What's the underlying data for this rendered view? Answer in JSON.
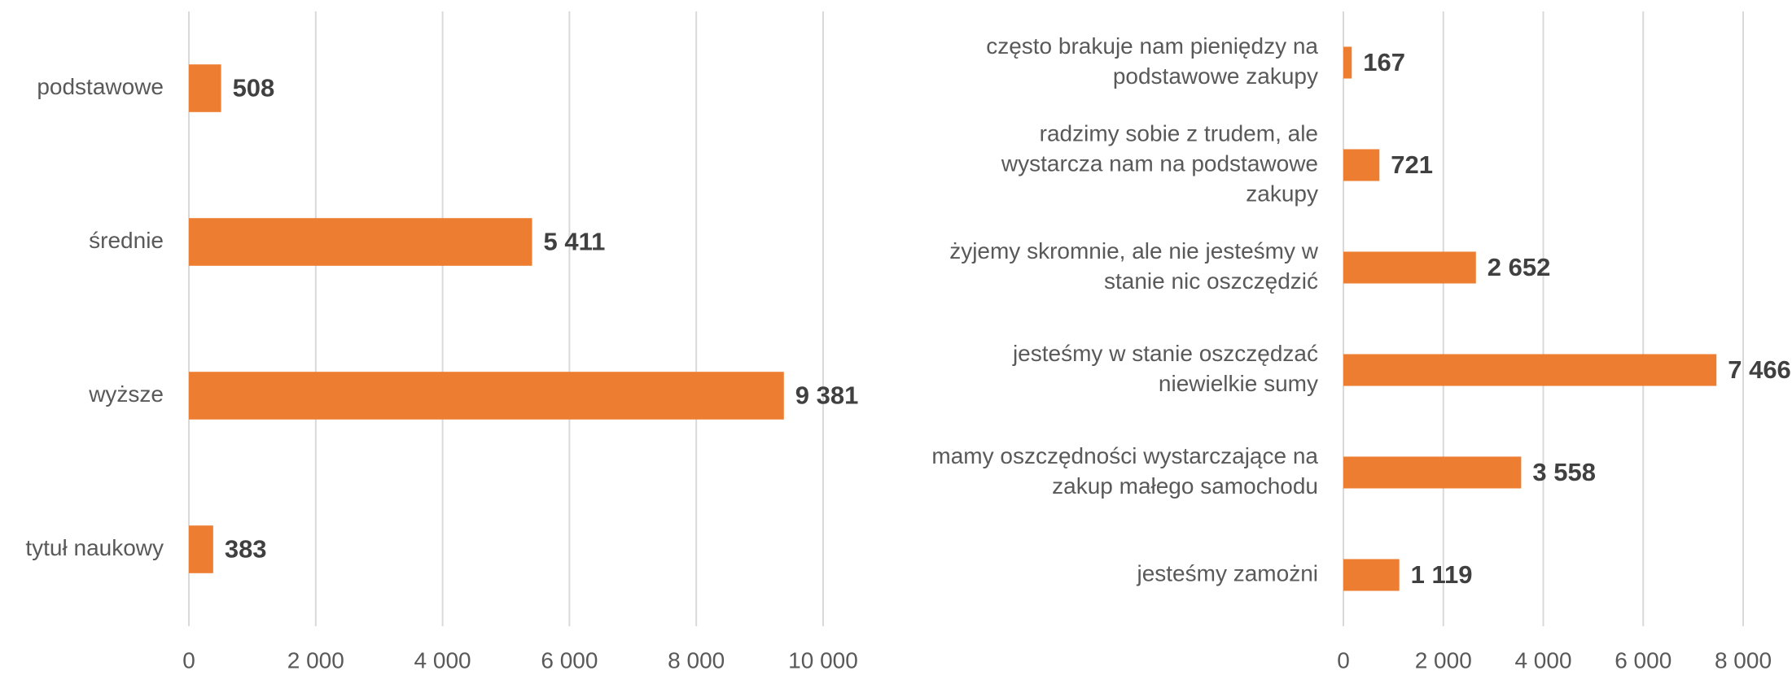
{
  "chart_data": [
    {
      "type": "bar",
      "orientation": "horizontal",
      "color": "#ed7d31",
      "grid": true,
      "categories": [
        "podstawowe",
        "średnie",
        "wyższe",
        "tytuł naukowy"
      ],
      "values": [
        508,
        5411,
        9381,
        383
      ],
      "value_labels": [
        "508",
        "5 411",
        "9 381",
        "383"
      ],
      "xlim": [
        0,
        10000
      ],
      "xticks": [
        0,
        {
          "value": 2000,
          "label": "2 000"
        },
        {
          "value": 4000,
          "label": "4 000"
        },
        {
          "value": 6000,
          "label": "6 000"
        },
        {
          "value": 8000,
          "label": "8 000"
        },
        {
          "value": 10000,
          "label": "10 000"
        }
      ]
    },
    {
      "type": "bar",
      "orientation": "horizontal",
      "color": "#ed7d31",
      "grid": true,
      "categories": [
        [
          "często brakuje nam pieniędzy na",
          "podstawowe zakupy"
        ],
        [
          "radzimy sobie z trudem, ale",
          "wystarcza nam na podstawowe",
          "zakupy"
        ],
        [
          "żyjemy skromnie, ale nie jesteśmy w",
          "stanie nic oszczędzić"
        ],
        [
          "jesteśmy w stanie oszczędzać",
          "niewielkie sumy"
        ],
        [
          "mamy oszczędności wystarczające na",
          "zakup małego samochodu"
        ],
        [
          "jesteśmy zamożni"
        ]
      ],
      "values": [
        167,
        721,
        2652,
        7466,
        3558,
        1119
      ],
      "value_labels": [
        "167",
        "721",
        "2 652",
        "7 466",
        "3 558",
        "1 119"
      ],
      "xlim": [
        0,
        8000
      ],
      "xticks": [
        0,
        {
          "value": 2000,
          "label": "2 000"
        },
        {
          "value": 4000,
          "label": "4 000"
        },
        {
          "value": 6000,
          "label": "6 000"
        },
        {
          "value": 8000,
          "label": "8 000"
        }
      ]
    }
  ]
}
